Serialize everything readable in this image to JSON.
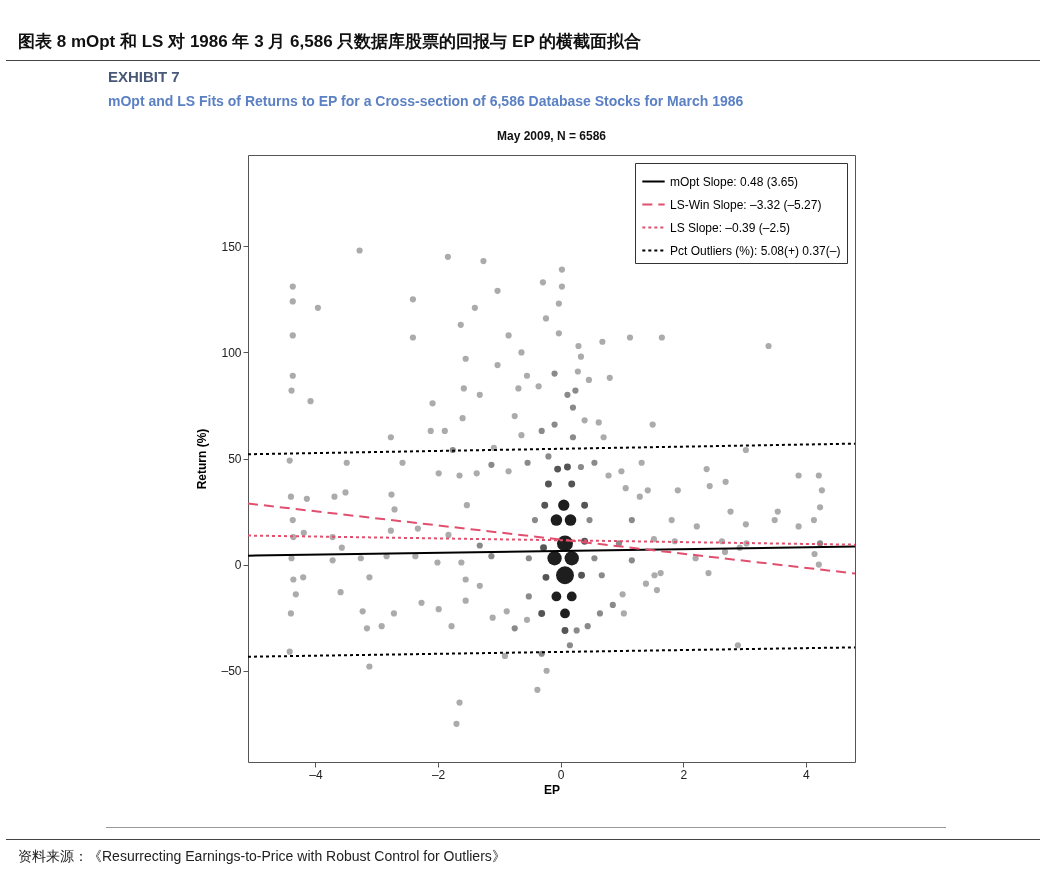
{
  "chart_data": {
    "type": "bubble",
    "title": "图表 8 mOpt 和 LS 对 1986 年 3 月 6,586 只数据库股票的回报与 EP 的横截面拟合",
    "subtitle": "mOpt and LS Fits of Returns to EP for a Cross-section of 6,586 Database Stocks for March 1986",
    "xlabel": "EP",
    "ylabel": "Return (%)",
    "annotations": [
      "EXHIBIT 7",
      "May 2009, N = 6586",
      "资料来源：《Resurrecting Earnings-to-Price with Robust Control for Outliers》"
    ],
    "xlim": [
      -5.1,
      4.8
    ],
    "ylim": [
      -93,
      193
    ],
    "xticks": [
      {
        "value": -4,
        "label": "–4"
      },
      {
        "value": -2,
        "label": "–2"
      },
      0,
      2,
      4
    ],
    "yticks": [
      {
        "value": -50,
        "label": "–50"
      },
      0,
      50,
      100,
      150
    ],
    "grid": false,
    "legend": "top right",
    "series": [
      {
        "marker": "circle",
        "x": [
          -4.37,
          -4.37,
          -4.37,
          -4.37,
          -4.39,
          -4.08,
          -3.96,
          -3.28,
          -2.41,
          -2.41,
          -1.84,
          -1.26,
          -1.63,
          -1.4,
          -1.55,
          -1.03,
          -0.85,
          -0.64,
          -0.24,
          -0.29,
          0.02,
          0.02,
          -0.03,
          -0.03,
          0.29,
          0.33,
          0.68,
          1.13,
          1.65,
          3.39,
          -0.55,
          -0.36,
          0.28,
          0.46,
          0.8,
          -0.69,
          -1.03,
          -1.58,
          -1.32,
          -2.09,
          -1.6,
          -0.75,
          -2.12,
          -1.89,
          0.39,
          0.62,
          1.5,
          0.7,
          -0.64,
          -1.09,
          -2.77,
          -4.42,
          -3.49,
          -3.51,
          -2.58,
          -1.99,
          -1.65,
          -1.37,
          -0.85,
          0.78,
          0.99,
          1.32,
          1.06,
          1.42,
          1.29,
          1.91,
          2.38,
          2.43,
          2.69,
          3.02,
          3.88,
          4.21,
          4.26,
          4.23,
          4.13,
          3.54,
          2.77,
          3.02,
          3.49,
          3.88,
          -4.4,
          -4.14,
          -4.37,
          -4.19,
          -4.36,
          -4.39,
          -4.36,
          -4.32,
          -4.4,
          -4.42,
          -4.2,
          -3.72,
          -3.72,
          -3.69,
          -3.57,
          -3.26,
          -2.76,
          -2.71,
          -2.77,
          -2.84,
          -3.12,
          -3.59,
          -3.23,
          -3.16,
          -2.92,
          -3.12,
          -2.72,
          -2.27,
          -1.99,
          -2.33,
          -1.83,
          -2.37,
          -2.01,
          -1.53,
          -1.62,
          -1.55,
          -1.32,
          -1.11,
          -0.88,
          -1.78,
          -1.55,
          -1.65,
          -1.7,
          -0.38,
          -0.23,
          -0.91,
          1.01,
          1.03,
          1.39,
          1.57,
          1.86,
          1.81,
          2.22,
          2.2,
          2.68,
          2.92,
          3.03,
          2.63,
          1.63,
          1.53,
          2.41,
          2.89,
          4.14,
          4.21,
          -0.55,
          1.52,
          -0.1,
          0.24,
          0.11,
          0.2,
          -0.1,
          0.2,
          -0.31,
          -0.54,
          -0.2,
          0.33,
          0.55,
          -1.13,
          -1.76,
          -1.32,
          -1.13,
          0.95,
          1.16,
          1.16,
          0.85,
          0.64,
          0.44,
          0.26,
          -0.31,
          -0.75,
          0.15,
          -0.52,
          0.55,
          -0.42,
          0.47,
          4.23,
          0.67,
          -0.52,
          0.11,
          -0.05,
          -0.2,
          0.18,
          -0.26,
          0.39,
          -0.28,
          0.39,
          -0.24,
          0.34,
          -0.31,
          0.07,
          0.05,
          -0.07,
          0.16,
          0.07,
          -0.1,
          0.18,
          0.07,
          -0.07,
          0.18,
          0.07
        ],
        "values": [
          131,
          124,
          108,
          89,
          82,
          77,
          121,
          148,
          125,
          107,
          145,
          143,
          113,
          121,
          97,
          129,
          108,
          100,
          116,
          133,
          139,
          131,
          123,
          109,
          103,
          98,
          105,
          107,
          107,
          103,
          89,
          84,
          91,
          87,
          88,
          83,
          94,
          83,
          80,
          76,
          69,
          70,
          63,
          63,
          68,
          67,
          66,
          60,
          61,
          55,
          60,
          49,
          48,
          34,
          48,
          43,
          42,
          43,
          44,
          42,
          44,
          48,
          36,
          35,
          32,
          35,
          45,
          37,
          39,
          54,
          42,
          42,
          35,
          27,
          21,
          25,
          25,
          19,
          21,
          18,
          32,
          31,
          21,
          15,
          13,
          3,
          -7,
          -14,
          -23,
          -41,
          -6,
          2,
          13,
          32,
          8,
          3,
          33,
          26,
          16,
          4,
          -6,
          -13,
          -22,
          -30,
          -29,
          -48,
          -23,
          -18,
          -21,
          17,
          14,
          4,
          1,
          28,
          1,
          -7,
          -10,
          -25,
          -22,
          -29,
          -17,
          -65,
          -75,
          -59,
          -50,
          -43,
          -14,
          -23,
          -9,
          -12,
          11,
          21,
          18,
          3,
          6,
          8,
          10,
          11,
          -4,
          -5,
          -4,
          -38,
          5,
          0,
          -26,
          12,
          90,
          82,
          80,
          74,
          66,
          60,
          63,
          48,
          51,
          46,
          48,
          47,
          54,
          9,
          4,
          10,
          21,
          2,
          -19,
          -23,
          -29,
          -31,
          -42,
          -30,
          -38,
          3,
          3,
          21,
          21,
          10,
          -5,
          -15,
          46,
          45,
          38,
          38,
          28,
          28,
          8,
          11,
          -6,
          -5,
          -23,
          -31,
          28,
          21,
          21,
          10,
          3,
          3,
          -5,
          -15,
          -15,
          -23
        ],
        "sizes": [
          0.12,
          0.12,
          0.12,
          0.12,
          0.12,
          0.12,
          0.12,
          0.12,
          0.12,
          0.12,
          0.12,
          0.12,
          0.12,
          0.12,
          0.12,
          0.12,
          0.12,
          0.12,
          0.12,
          0.12,
          0.12,
          0.12,
          0.12,
          0.12,
          0.12,
          0.12,
          0.12,
          0.12,
          0.12,
          0.12,
          0.12,
          0.12,
          0.12,
          0.12,
          0.12,
          0.12,
          0.12,
          0.12,
          0.12,
          0.12,
          0.12,
          0.12,
          0.12,
          0.12,
          0.12,
          0.12,
          0.12,
          0.12,
          0.12,
          0.12,
          0.12,
          0.12,
          0.12,
          0.12,
          0.12,
          0.12,
          0.12,
          0.12,
          0.12,
          0.12,
          0.12,
          0.12,
          0.12,
          0.12,
          0.12,
          0.12,
          0.12,
          0.12,
          0.12,
          0.12,
          0.12,
          0.12,
          0.12,
          0.12,
          0.12,
          0.12,
          0.12,
          0.12,
          0.12,
          0.12,
          0.12,
          0.12,
          0.12,
          0.12,
          0.12,
          0.12,
          0.12,
          0.12,
          0.12,
          0.12,
          0.12,
          0.12,
          0.12,
          0.12,
          0.12,
          0.12,
          0.12,
          0.12,
          0.12,
          0.12,
          0.12,
          0.12,
          0.12,
          0.12,
          0.12,
          0.12,
          0.12,
          0.12,
          0.12,
          0.12,
          0.12,
          0.12,
          0.12,
          0.12,
          0.12,
          0.12,
          0.12,
          0.12,
          0.12,
          0.12,
          0.12,
          0.12,
          0.12,
          0.12,
          0.12,
          0.12,
          0.12,
          0.12,
          0.12,
          0.12,
          0.12,
          0.12,
          0.12,
          0.12,
          0.12,
          0.12,
          0.12,
          0.12,
          0.12,
          0.12,
          0.12,
          0.12,
          0.12,
          0.12,
          0.12,
          0.12,
          0.12,
          0.12,
          0.12,
          0.12,
          0.12,
          0.12,
          0.12,
          0.12,
          0.12,
          0.12,
          0.12,
          0.12,
          0.12,
          0.12,
          0.12,
          0.12,
          0.12,
          0.12,
          0.12,
          0.12,
          0.12,
          0.12,
          0.12,
          0.12,
          0.12,
          0.12,
          0.12,
          0.12,
          0.12,
          0.12,
          0.12,
          0.12,
          0.15,
          0.15,
          0.15,
          0.15,
          0.15,
          0.15,
          0.15,
          0.15,
          0.15,
          0.15,
          0.15,
          0.15,
          0.4,
          0.42,
          0.42,
          0.8,
          0.64,
          0.64,
          1,
          0.3,
          0.3,
          0.3
        ],
        "colors": [
          "#ababab",
          "#ababab",
          "#ababab",
          "#ababab",
          "#ababab",
          "#ababab",
          "#ababab",
          "#ababab",
          "#ababab",
          "#ababab",
          "#ababab",
          "#ababab",
          "#ababab",
          "#ababab",
          "#ababab",
          "#ababab",
          "#ababab",
          "#ababab",
          "#ababab",
          "#ababab",
          "#ababab",
          "#ababab",
          "#ababab",
          "#ababab",
          "#ababab",
          "#ababab",
          "#ababab",
          "#ababab",
          "#ababab",
          "#ababab",
          "#ababab",
          "#ababab",
          "#ababab",
          "#ababab",
          "#ababab",
          "#ababab",
          "#ababab",
          "#ababab",
          "#ababab",
          "#ababab",
          "#ababab",
          "#ababab",
          "#ababab",
          "#ababab",
          "#ababab",
          "#ababab",
          "#ababab",
          "#ababab",
          "#ababab",
          "#ababab",
          "#ababab",
          "#ababab",
          "#ababab",
          "#ababab",
          "#ababab",
          "#ababab",
          "#ababab",
          "#ababab",
          "#ababab",
          "#ababab",
          "#ababab",
          "#ababab",
          "#ababab",
          "#ababab",
          "#ababab",
          "#ababab",
          "#ababab",
          "#ababab",
          "#ababab",
          "#ababab",
          "#ababab",
          "#ababab",
          "#ababab",
          "#ababab",
          "#ababab",
          "#ababab",
          "#ababab",
          "#ababab",
          "#ababab",
          "#ababab",
          "#ababab",
          "#ababab",
          "#ababab",
          "#ababab",
          "#ababab",
          "#ababab",
          "#ababab",
          "#ababab",
          "#ababab",
          "#ababab",
          "#ababab",
          "#ababab",
          "#ababab",
          "#ababab",
          "#ababab",
          "#ababab",
          "#ababab",
          "#ababab",
          "#ababab",
          "#ababab",
          "#ababab",
          "#ababab",
          "#ababab",
          "#ababab",
          "#ababab",
          "#ababab",
          "#ababab",
          "#ababab",
          "#ababab",
          "#ababab",
          "#ababab",
          "#ababab",
          "#ababab",
          "#ababab",
          "#ababab",
          "#ababab",
          "#ababab",
          "#ababab",
          "#ababab",
          "#ababab",
          "#ababab",
          "#ababab",
          "#ababab",
          "#ababab",
          "#ababab",
          "#ababab",
          "#ababab",
          "#ababab",
          "#ababab",
          "#ababab",
          "#ababab",
          "#ababab",
          "#ababab",
          "#ababab",
          "#ababab",
          "#ababab",
          "#ababab",
          "#ababab",
          "#ababab",
          "#ababab",
          "#ababab",
          "#ababab",
          "#ababab",
          "#ababab",
          "#ababab",
          "#ababab",
          "#8a8a8a",
          "#8a8a8a",
          "#8a8a8a",
          "#8a8a8a",
          "#8a8a8a",
          "#8a8a8a",
          "#8a8a8a",
          "#8a8a8a",
          "#8a8a8a",
          "#8a8a8a",
          "#8a8a8a",
          "#8a8a8a",
          "#8a8a8a",
          "#8a8a8a",
          "#8a8a8a",
          "#8a8a8a",
          "#8a8a8a",
          "#8a8a8a",
          "#8a8a8a",
          "#8a8a8a",
          "#8a8a8a",
          "#8a8a8a",
          "#8a8a8a",
          "#8a8a8a",
          "#8a8a8a",
          "#8a8a8a",
          "#8a8a8a",
          "#8a8a8a",
          "#8a8a8a",
          "#8a8a8a",
          "#8a8a8a",
          "#8a8a8a",
          "#555555",
          "#555555",
          "#555555",
          "#555555",
          "#555555",
          "#555555",
          "#555555",
          "#555555",
          "#555555",
          "#555555",
          "#555555",
          "#555555",
          "#1e1e1e",
          "#1e1e1e",
          "#1e1e1e",
          "#1e1e1e",
          "#1e1e1e",
          "#1e1e1e",
          "#1e1e1e",
          "#1e1e1e",
          "#1e1e1e",
          "#1e1e1e"
        ]
      },
      {
        "type": "line",
        "name": "mOpt Slope: 0.48 (3.65)",
        "color": "#000000",
        "line_style": "solid",
        "x": [
          -5.1,
          4.8
        ],
        "values": [
          4.2,
          8.5
        ]
      },
      {
        "type": "line",
        "name": "LS-Win Slope: –3.32 (–5.27)",
        "color": "#e0506e",
        "line_style": "dashed",
        "x": [
          -5.1,
          4.8
        ],
        "values": [
          28.8,
          -4.2
        ]
      },
      {
        "type": "line",
        "name": "LS Slope: –0.39 (–2.5)",
        "color": "#e0506e",
        "line_style": "dotted",
        "x": [
          -5.1,
          4.8
        ],
        "values": [
          13.7,
          9.4
        ]
      },
      {
        "type": "line",
        "name": "Pct Outliers (%): 5.08(+) 0.37(–)",
        "color": "#000000",
        "line_style": "dotted",
        "x": [
          -5.1,
          4.8
        ],
        "values": [
          52,
          57
        ]
      },
      {
        "type": "line",
        "color": "#000000",
        "line_style": "dotted",
        "x": [
          -5.1,
          4.8
        ],
        "values": [
          -43.4,
          -39
        ]
      }
    ]
  }
}
